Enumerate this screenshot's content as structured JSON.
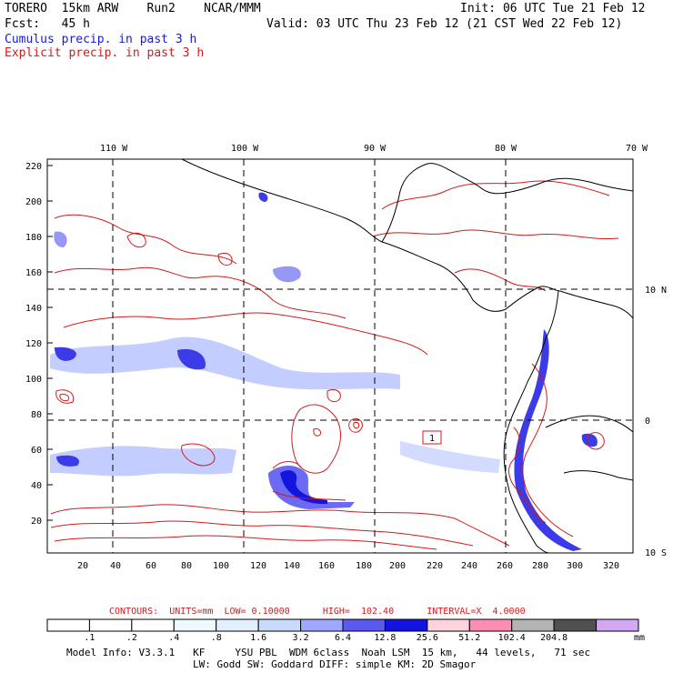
{
  "header": {
    "model_line": "TORERO  15km ARW    Run2    NCAR/MMM",
    "init": "Init: 06 UTC Tue 21 Feb 12",
    "fcst": "Fcst:   45 h",
    "valid": "Valid: 03 UTC Thu 23 Feb 12 (21 CST Wed 22 Feb 12)",
    "legend_cumulus": "Cumulus precip. in past 3 h",
    "legend_explicit": "Explicit precip. in past 3 h"
  },
  "map": {
    "top_lon_labels": [
      "110 W",
      "100 W",
      "90 W",
      "80 W",
      "70 W"
    ],
    "right_lat_labels": [
      "10 N",
      "0",
      "10 S"
    ],
    "left_y_ticks": [
      "220",
      "200",
      "180",
      "160",
      "140",
      "120",
      "100",
      "80",
      "60",
      "40",
      "20"
    ],
    "bottom_x_ticks": [
      "20",
      "40",
      "60",
      "80",
      "100",
      "120",
      "140",
      "160",
      "180",
      "200",
      "220",
      "240",
      "260",
      "280",
      "300",
      "320"
    ],
    "max_label": "1",
    "colors": {
      "cumulus": "#1a1acc",
      "explicit": "#d41a1a",
      "coast": "#000000"
    }
  },
  "contour_info": {
    "title": "CONTOURS:",
    "units": "UNITS=mm",
    "low": "LOW= 0.10000",
    "high": "HIGH=  102.40",
    "interval": "INTERVAL=X  4.0000"
  },
  "colorbar": {
    "unit": "mm",
    "labels": [
      ".1",
      ".2",
      ".4",
      ".8",
      "1.6",
      "3.2",
      "6.4",
      "12.8",
      "25.6",
      "51.2",
      "102.4",
      "204.8"
    ],
    "colors": [
      "#ffffff",
      "#ffffff",
      "#ffffff",
      "#eef8ff",
      "#e0f0ff",
      "#c8daff",
      "#9fa8ff",
      "#5a5af0",
      "#1414e0",
      "#ffd2dc",
      "#ff8cb4",
      "#b4b4b4",
      "#505050",
      "#d2a8f5"
    ]
  },
  "model_info": {
    "line1": "Model Info: V3.3.1   KF     YSU PBL  WDM 6class  Noah LSM  15 km,   44 levels,   71 sec",
    "line2": "LW: Godd SW: Goddard DIFF: simple KM: 2D Smagor"
  }
}
